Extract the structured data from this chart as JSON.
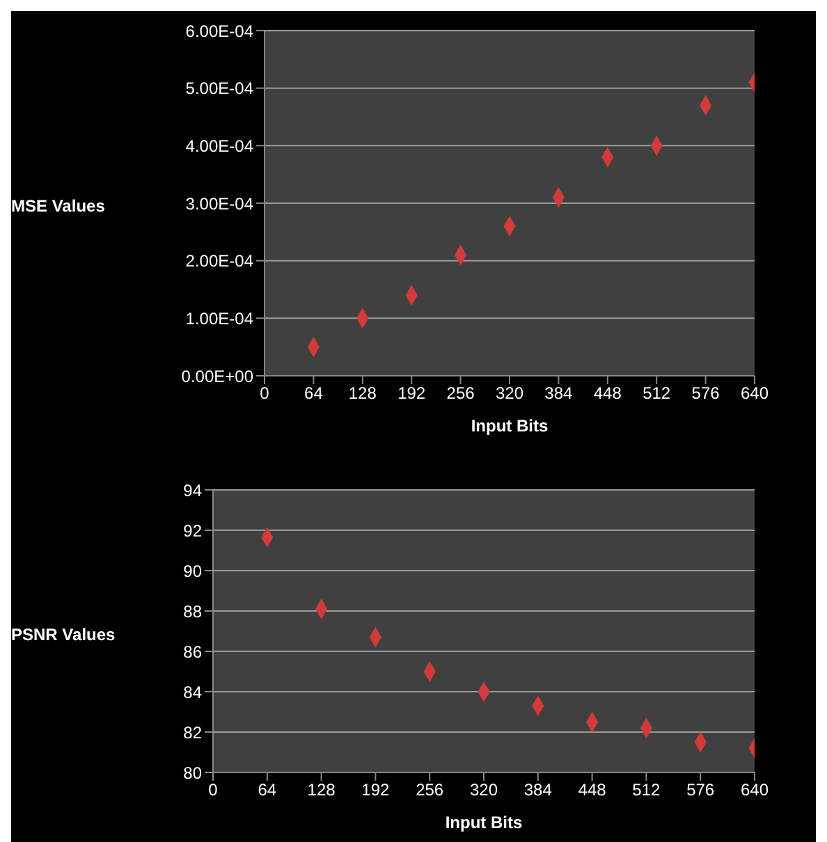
{
  "chart_data": [
    {
      "type": "scatter",
      "ylabel": "MSE Values",
      "xlabel": "Input Bits",
      "x": [
        64,
        128,
        192,
        256,
        320,
        384,
        448,
        512,
        576,
        640
      ],
      "series": [
        {
          "color": "#d13b3b",
          "values": [
            5e-05,
            0.0001,
            0.00014,
            0.00021,
            0.00026,
            0.00031,
            0.00038,
            0.0004,
            0.00047,
            0.00051
          ]
        }
      ],
      "xlim": [
        0,
        640
      ],
      "xticks": [
        0,
        64,
        128,
        192,
        256,
        320,
        384,
        448,
        512,
        576,
        640
      ],
      "ylim": [
        0,
        0.0006
      ],
      "yticks": [
        {
          "value": 0,
          "label": "0.00E+00"
        },
        {
          "value": 0.0001,
          "label": "1.00E-04"
        },
        {
          "value": 0.0002,
          "label": "2.00E-04"
        },
        {
          "value": 0.0003,
          "label": "3.00E-04"
        },
        {
          "value": 0.0004,
          "label": "4.00E-04"
        },
        {
          "value": 0.0005,
          "label": "5.00E-04"
        },
        {
          "value": 0.0006,
          "label": "6.00E-04"
        }
      ],
      "grid": "y",
      "marker": "diamond"
    },
    {
      "type": "scatter",
      "ylabel": "PSNR Values",
      "xlabel": "Input Bits",
      "x": [
        64,
        128,
        192,
        256,
        320,
        384,
        448,
        512,
        576,
        640
      ],
      "series": [
        {
          "color": "#d13b3b",
          "values": [
            91.65,
            88.1,
            86.7,
            85.0,
            84.0,
            83.3,
            82.5,
            82.2,
            81.5,
            81.2
          ]
        }
      ],
      "xlim": [
        0,
        640
      ],
      "xticks": [
        0,
        64,
        128,
        192,
        256,
        320,
        384,
        448,
        512,
        576,
        640
      ],
      "ylim": [
        80,
        94
      ],
      "yticks": [
        80,
        82,
        84,
        86,
        88,
        90,
        92,
        94
      ],
      "grid": "y",
      "marker": "diamond"
    }
  ]
}
